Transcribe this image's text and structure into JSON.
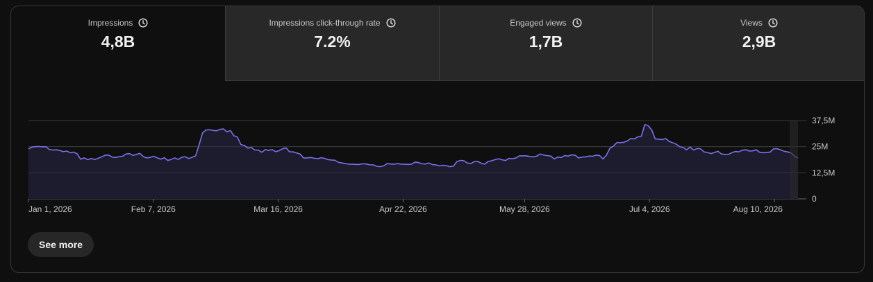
{
  "tabs": [
    {
      "label": "Impressions",
      "value": "4,8B",
      "selected": true,
      "icon": "clock-icon"
    },
    {
      "label": "Impressions click-through rate",
      "value": "7.2%",
      "selected": false,
      "icon": "clock-icon"
    },
    {
      "label": "Engaged views",
      "value": "1,7B",
      "selected": false,
      "icon": "clock-icon"
    },
    {
      "label": "Views",
      "value": "2,9B",
      "selected": false,
      "icon": "clock-icon"
    }
  ],
  "see_more_label": "See more",
  "colors": {
    "line": "#7b72e8",
    "area": "#1d1b2e",
    "grid": "#3a3a3a",
    "selected_tab_bg": "#0f0f0f",
    "tab_bg": "#282828"
  },
  "chart_data": {
    "type": "area",
    "x_start": "2026-01-01",
    "x_end": "2026-08-17",
    "x_ticks": [
      "Jan 1, 2026",
      "Feb 7, 2026",
      "Mar 16, 2026",
      "Apr 22, 2026",
      "May 28, 2026",
      "Jul 4, 2026",
      "Aug 10, 2026"
    ],
    "y_ticks": [
      "0",
      "12,5M",
      "25M",
      "37,5M"
    ],
    "y_tick_values": [
      0,
      12.5,
      25,
      37.5
    ],
    "ylim": [
      0,
      37.5
    ],
    "y_unit": "M",
    "grid": true,
    "series": [
      {
        "values": [
          23.9,
          24.8,
          25.0,
          25.1,
          24.9,
          25.0,
          23.6,
          23.4,
          23.5,
          23.2,
          22.6,
          22.9,
          22.1,
          22.4,
          21.5,
          19.0,
          19.6,
          18.8,
          19.3,
          18.9,
          19.4,
          20.1,
          20.9,
          21.0,
          20.0,
          19.8,
          20.2,
          20.4,
          21.5,
          21.7,
          20.8,
          21.3,
          21.8,
          20.2,
          19.6,
          19.9,
          20.4,
          19.6,
          19.0,
          19.7,
          18.4,
          18.9,
          19.6,
          18.9,
          19.9,
          20.2,
          19.3,
          19.9,
          20.6,
          25.9,
          31.6,
          33.0,
          33.1,
          32.8,
          32.6,
          33.3,
          33.5,
          32.1,
          32.7,
          30.2,
          29.6,
          26.0,
          25.6,
          24.3,
          24.6,
          23.4,
          23.4,
          22.3,
          23.6,
          23.2,
          23.6,
          22.6,
          23.1,
          24.0,
          24.4,
          22.5,
          22.5,
          22.0,
          21.5,
          19.6,
          19.6,
          19.8,
          19.5,
          19.2,
          19.7,
          19.4,
          18.8,
          18.6,
          18.5,
          17.5,
          17.2,
          16.9,
          16.6,
          16.6,
          16.5,
          16.5,
          16.8,
          16.7,
          16.3,
          16.3,
          15.6,
          15.4,
          15.8,
          16.9,
          16.7,
          16.6,
          16.9,
          16.6,
          16.6,
          16.5,
          16.6,
          17.6,
          17.4,
          16.8,
          16.7,
          17.2,
          16.4,
          16.3,
          15.8,
          16.1,
          15.9,
          15.4,
          15.6,
          17.8,
          18.4,
          18.3,
          17.2,
          16.9,
          17.8,
          17.9,
          17.1,
          16.6,
          17.9,
          18.2,
          18.8,
          19.2,
          18.7,
          18.4,
          19.4,
          19.2,
          19.6,
          20.6,
          20.6,
          20.6,
          20.3,
          20.1,
          20.5,
          21.5,
          21.0,
          20.7,
          20.5,
          19.1,
          20.0,
          19.8,
          20.7,
          20.5,
          21.1,
          20.9,
          19.6,
          20.0,
          20.1,
          20.5,
          20.4,
          20.9,
          20.8,
          19.1,
          21.0,
          24.3,
          25.3,
          27.0,
          26.9,
          27.1,
          27.8,
          28.9,
          28.7,
          29.7,
          30.0,
          35.6,
          35.0,
          33.0,
          28.7,
          28.6,
          28.4,
          28.9,
          27.5,
          26.9,
          26.2,
          25.0,
          24.6,
          23.5,
          24.8,
          23.4,
          24.1,
          24.0,
          22.5,
          22.2,
          21.7,
          22.2,
          22.8,
          21.5,
          21.3,
          21.3,
          22.1,
          22.7,
          22.5,
          23.3,
          23.5,
          22.9,
          23.0,
          23.5,
          22.3,
          22.1,
          22.2,
          22.4,
          24.0,
          24.0,
          23.5,
          22.8,
          22.5,
          22.0,
          20.5,
          19.5
        ]
      }
    ]
  }
}
